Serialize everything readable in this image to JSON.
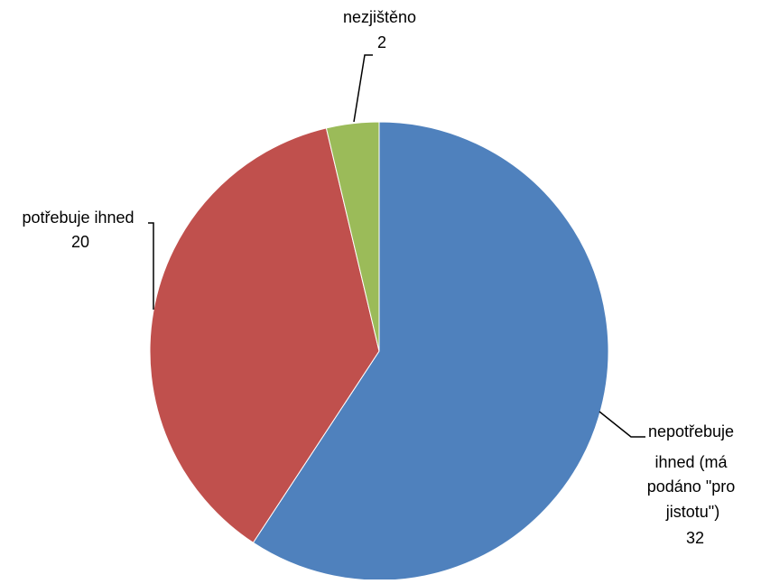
{
  "chart_data": {
    "type": "pie",
    "title": "",
    "slices": [
      {
        "label_lines": [
          "nepotřebuje",
          "ihned (má",
          "podáno \"pro",
          "jistotu\")"
        ],
        "value": 32,
        "value_text": "32",
        "color": "#4F81BD"
      },
      {
        "label_lines": [
          "potřebuje ihned"
        ],
        "value": 20,
        "value_text": "20",
        "color": "#C0504D"
      },
      {
        "label_lines": [
          "nezjištěno"
        ],
        "value": 2,
        "value_text": "2",
        "color": "#9BBB59"
      }
    ],
    "start_angle": "12 o'clock",
    "direction": "clockwise",
    "legend": "none",
    "data_labels": "outside with leader lines"
  }
}
